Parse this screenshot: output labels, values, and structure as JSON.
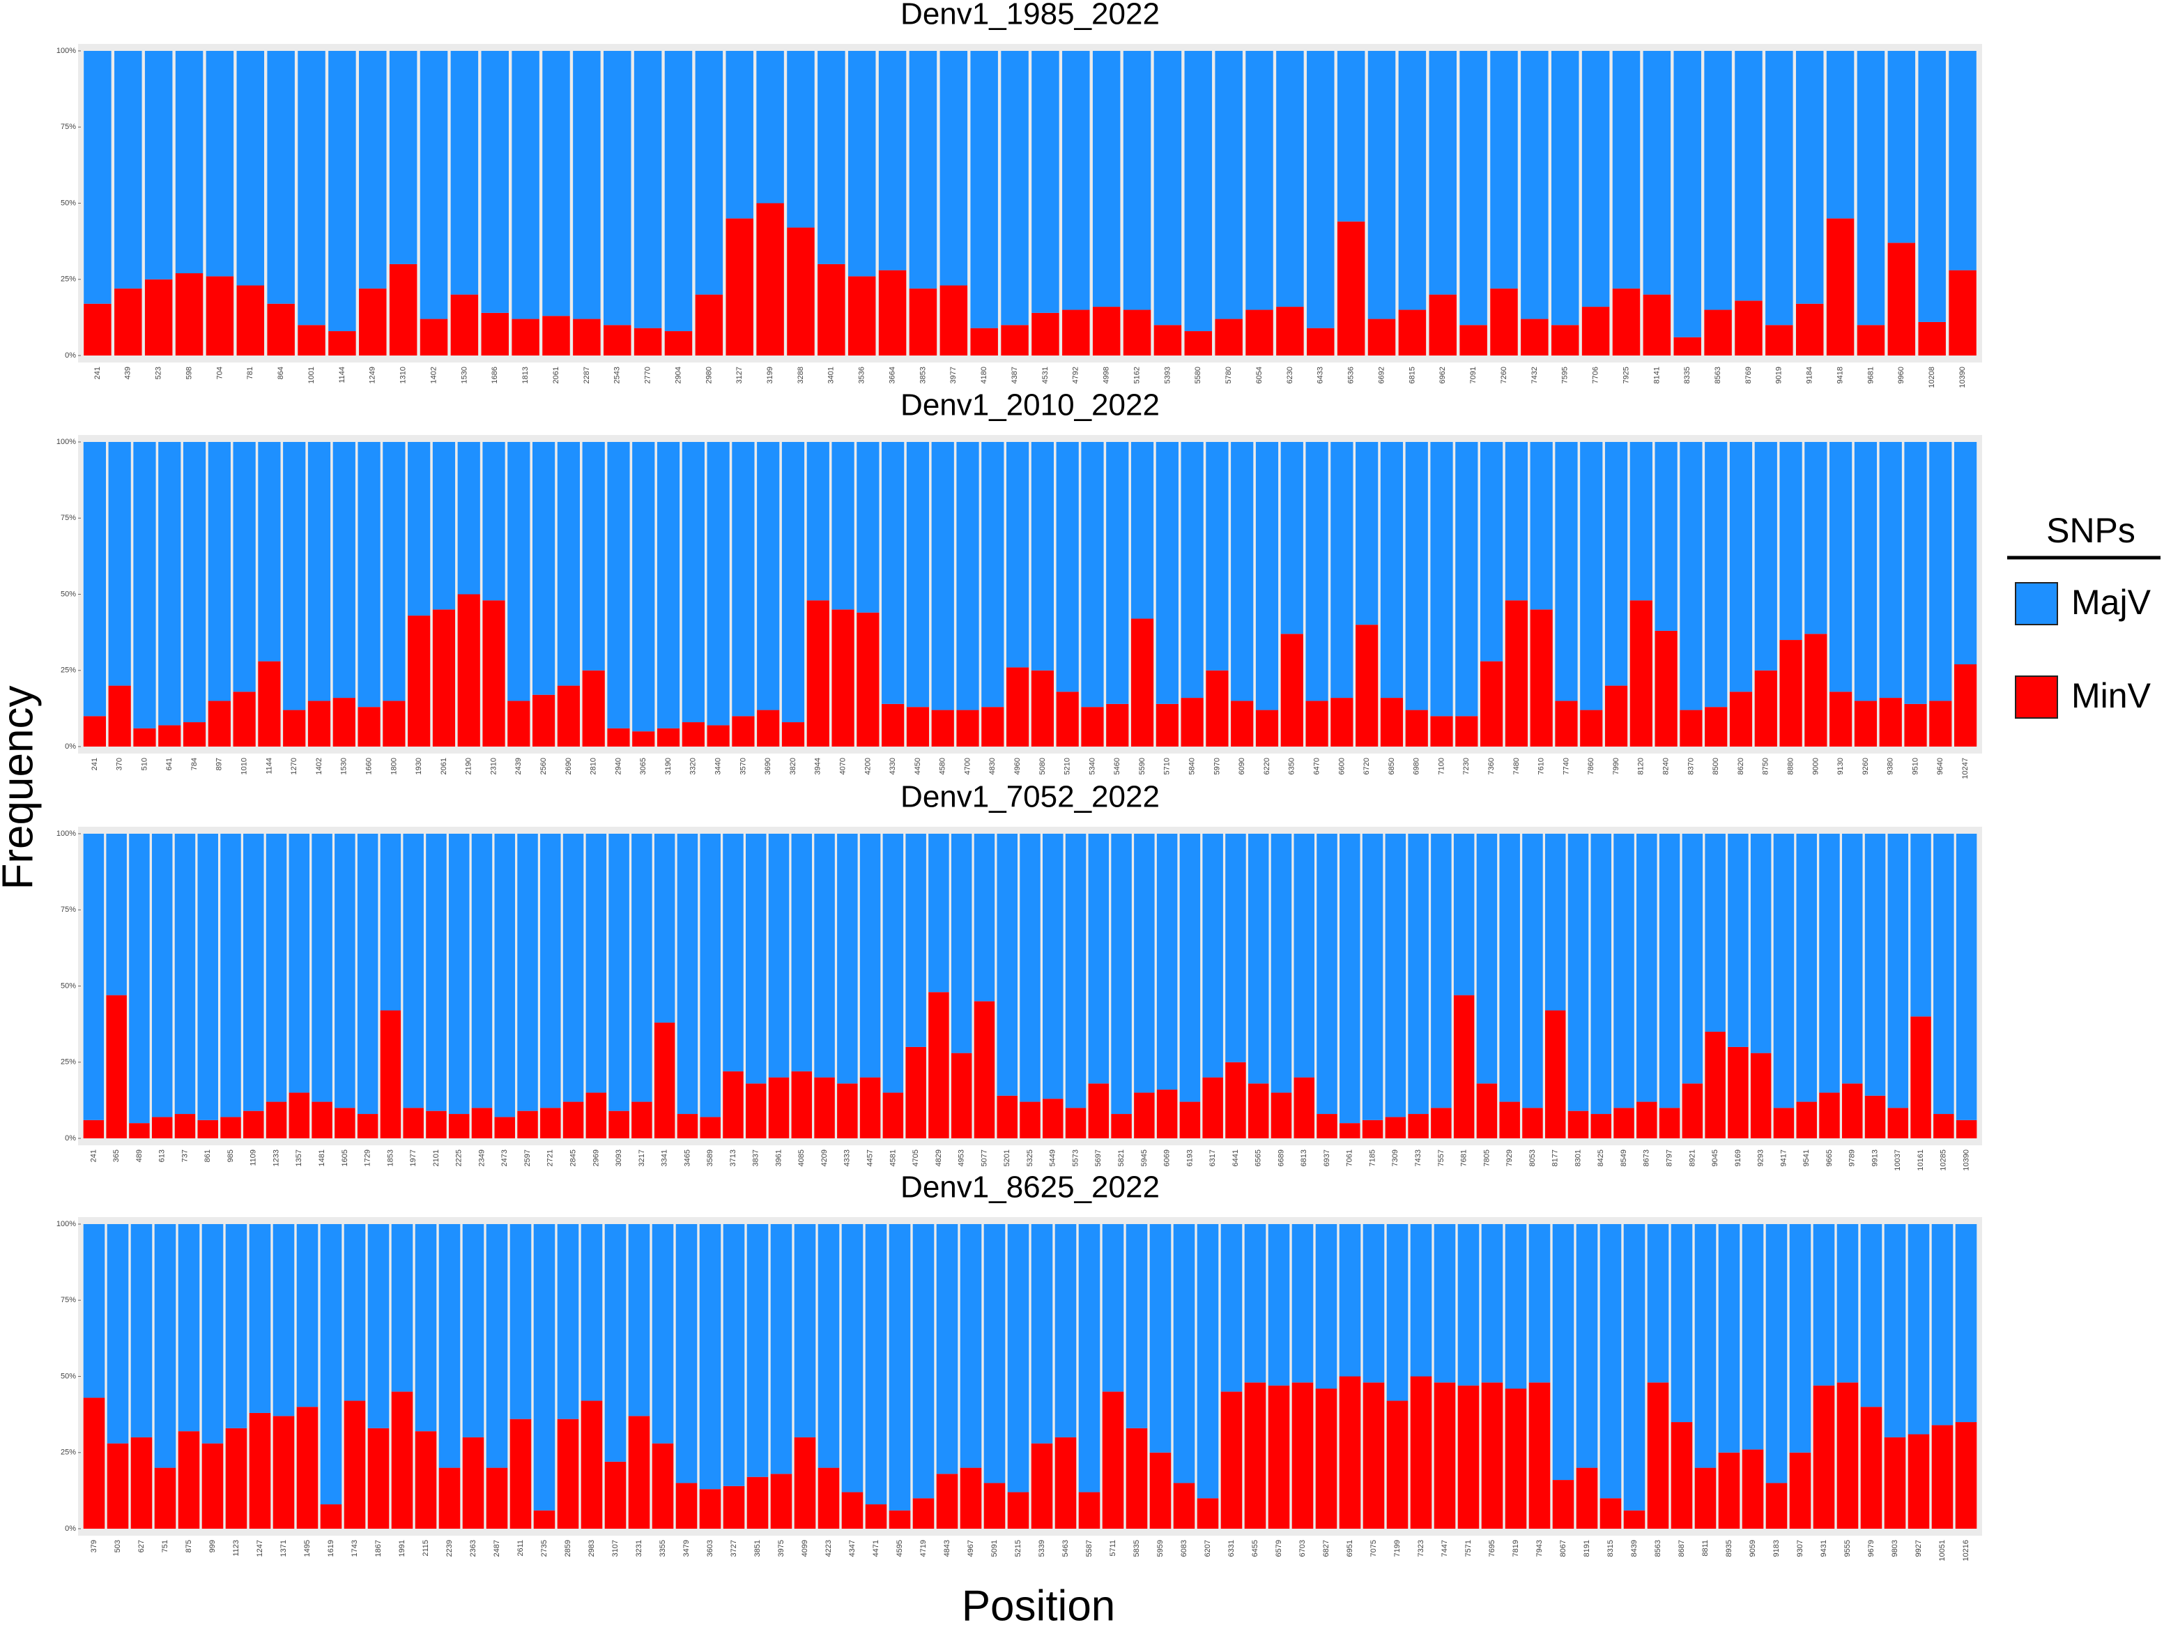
{
  "xlabel": "Position",
  "ylabel": "Frequency",
  "legend": {
    "title": "SNPs",
    "position": "right"
  },
  "chart_data": [
    {
      "type": "bar",
      "stacked": true,
      "title": "Denv1_1985_2022",
      "ylim": [
        0,
        100
      ],
      "yticks": [
        {
          "value": 0,
          "label": "0%"
        },
        {
          "value": 25,
          "label": "25%"
        },
        {
          "value": 50,
          "label": "50%"
        },
        {
          "value": 75,
          "label": "75%"
        },
        {
          "value": 100,
          "label": "100%"
        }
      ],
      "categories": [
        "241",
        "439",
        "523",
        "598",
        "704",
        "781",
        "864",
        "1001",
        "1144",
        "1249",
        "1310",
        "1402",
        "1530",
        "1686",
        "1813",
        "2061",
        "2287",
        "2543",
        "2770",
        "2904",
        "2980",
        "3127",
        "3199",
        "3288",
        "3401",
        "3536",
        "3664",
        "3853",
        "3977",
        "4180",
        "4387",
        "4531",
        "4792",
        "4998",
        "5162",
        "5393",
        "5580",
        "5780",
        "6054",
        "6230",
        "6433",
        "6536",
        "6692",
        "6815",
        "6962",
        "7091",
        "7260",
        "7432",
        "7595",
        "7706",
        "7925",
        "8141",
        "8335",
        "8563",
        "8769",
        "9019",
        "9184",
        "9418",
        "9681",
        "9960",
        "10208",
        "10390"
      ],
      "series": [
        {
          "name": "MajV",
          "color": "#1e90ff",
          "values": [
            83,
            78,
            75,
            73,
            74,
            77,
            83,
            90,
            92,
            78,
            70,
            88,
            80,
            86,
            88,
            87,
            88,
            90,
            91,
            92,
            80,
            55,
            50,
            58,
            70,
            74,
            72,
            78,
            77,
            91,
            90,
            86,
            85,
            84,
            85,
            90,
            92,
            88,
            85,
            84,
            91,
            56,
            88,
            85,
            80,
            90,
            78,
            88,
            90,
            84,
            78,
            80,
            94,
            85,
            82,
            90,
            83,
            55,
            90,
            63,
            89,
            72
          ]
        },
        {
          "name": "MinV",
          "color": "#ff0000",
          "values": [
            17,
            22,
            25,
            27,
            26,
            23,
            17,
            10,
            8,
            22,
            30,
            12,
            20,
            14,
            12,
            13,
            12,
            10,
            9,
            8,
            20,
            45,
            50,
            42,
            30,
            26,
            28,
            22,
            23,
            9,
            10,
            14,
            15,
            16,
            15,
            10,
            8,
            12,
            15,
            16,
            9,
            44,
            12,
            15,
            20,
            10,
            22,
            12,
            10,
            16,
            22,
            20,
            6,
            15,
            18,
            10,
            17,
            45,
            10,
            37,
            11,
            28
          ]
        }
      ]
    },
    {
      "type": "bar",
      "stacked": true,
      "title": "Denv1_2010_2022",
      "ylim": [
        0,
        100
      ],
      "yticks": [
        {
          "value": 0,
          "label": "0%"
        },
        {
          "value": 25,
          "label": "25%"
        },
        {
          "value": 50,
          "label": "50%"
        },
        {
          "value": 75,
          "label": "75%"
        },
        {
          "value": 100,
          "label": "100%"
        }
      ],
      "categories": [
        "241",
        "370",
        "510",
        "641",
        "784",
        "897",
        "1010",
        "1144",
        "1270",
        "1402",
        "1530",
        "1660",
        "1800",
        "1930",
        "2061",
        "2190",
        "2310",
        "2439",
        "2560",
        "2690",
        "2810",
        "2940",
        "3065",
        "3190",
        "3320",
        "3440",
        "3570",
        "3690",
        "3820",
        "3944",
        "4070",
        "4200",
        "4330",
        "4450",
        "4580",
        "4700",
        "4830",
        "4960",
        "5080",
        "5210",
        "5340",
        "5460",
        "5590",
        "5710",
        "5840",
        "5970",
        "6090",
        "6220",
        "6350",
        "6470",
        "6600",
        "6720",
        "6850",
        "6980",
        "7100",
        "7230",
        "7360",
        "7480",
        "7610",
        "7740",
        "7860",
        "7990",
        "8120",
        "8240",
        "8370",
        "8500",
        "8620",
        "8750",
        "8880",
        "9000",
        "9130",
        "9260",
        "9380",
        "9510",
        "9640",
        "10247"
      ],
      "series": [
        {
          "name": "MajV",
          "color": "#1e90ff",
          "values": [
            90,
            80,
            94,
            93,
            92,
            85,
            82,
            72,
            88,
            85,
            84,
            87,
            85,
            57,
            55,
            50,
            52,
            85,
            83,
            80,
            75,
            94,
            95,
            94,
            92,
            93,
            90,
            88,
            92,
            52,
            55,
            56,
            86,
            87,
            88,
            88,
            87,
            74,
            75,
            82,
            87,
            86,
            58,
            86,
            84,
            75,
            85,
            88,
            63,
            85,
            84,
            60,
            84,
            88,
            90,
            90,
            72,
            52,
            55,
            85,
            88,
            80,
            52,
            62,
            88,
            87,
            82,
            75,
            65,
            63,
            82,
            85,
            84,
            86,
            85,
            73
          ]
        },
        {
          "name": "MinV",
          "color": "#ff0000",
          "values": [
            10,
            20,
            6,
            7,
            8,
            15,
            18,
            28,
            12,
            15,
            16,
            13,
            15,
            43,
            45,
            50,
            48,
            15,
            17,
            20,
            25,
            6,
            5,
            6,
            8,
            7,
            10,
            12,
            8,
            48,
            45,
            44,
            14,
            13,
            12,
            12,
            13,
            26,
            25,
            18,
            13,
            14,
            42,
            14,
            16,
            25,
            15,
            12,
            37,
            15,
            16,
            40,
            16,
            12,
            10,
            10,
            28,
            48,
            45,
            15,
            12,
            20,
            48,
            38,
            12,
            13,
            18,
            25,
            35,
            37,
            18,
            15,
            16,
            14,
            15,
            27
          ]
        }
      ]
    },
    {
      "type": "bar",
      "stacked": true,
      "title": "Denv1_7052_2022",
      "ylim": [
        0,
        100
      ],
      "yticks": [
        {
          "value": 0,
          "label": "0%"
        },
        {
          "value": 25,
          "label": "25%"
        },
        {
          "value": 50,
          "label": "50%"
        },
        {
          "value": 75,
          "label": "75%"
        },
        {
          "value": 100,
          "label": "100%"
        }
      ],
      "categories": [
        "241",
        "365",
        "489",
        "613",
        "737",
        "861",
        "985",
        "1109",
        "1233",
        "1357",
        "1481",
        "1605",
        "1729",
        "1853",
        "1977",
        "2101",
        "2225",
        "2349",
        "2473",
        "2597",
        "2721",
        "2845",
        "2969",
        "3093",
        "3217",
        "3341",
        "3465",
        "3589",
        "3713",
        "3837",
        "3961",
        "4085",
        "4209",
        "4333",
        "4457",
        "4581",
        "4705",
        "4829",
        "4953",
        "5077",
        "5201",
        "5325",
        "5449",
        "5573",
        "5697",
        "5821",
        "5945",
        "6069",
        "6193",
        "6317",
        "6441",
        "6565",
        "6689",
        "6813",
        "6937",
        "7061",
        "7185",
        "7309",
        "7433",
        "7557",
        "7681",
        "7805",
        "7929",
        "8053",
        "8177",
        "8301",
        "8425",
        "8549",
        "8673",
        "8797",
        "8921",
        "9045",
        "9169",
        "9293",
        "9417",
        "9541",
        "9665",
        "9789",
        "9913",
        "10037",
        "10161",
        "10285",
        "10390"
      ],
      "series": [
        {
          "name": "MajV",
          "color": "#1e90ff",
          "values": [
            94,
            53,
            95,
            93,
            92,
            94,
            93,
            91,
            88,
            85,
            88,
            90,
            92,
            58,
            90,
            91,
            92,
            90,
            93,
            91,
            90,
            88,
            85,
            91,
            88,
            62,
            92,
            93,
            78,
            82,
            80,
            78,
            80,
            82,
            80,
            85,
            70,
            52,
            72,
            55,
            86,
            88,
            87,
            90,
            82,
            92,
            85,
            84,
            88,
            80,
            75,
            82,
            85,
            80,
            92,
            95,
            94,
            93,
            92,
            90,
            53,
            82,
            88,
            90,
            58,
            91,
            92,
            90,
            88,
            90,
            82,
            65,
            70,
            72,
            90,
            88,
            85,
            82,
            86,
            90,
            60,
            92,
            94
          ]
        },
        {
          "name": "MinV",
          "color": "#ff0000",
          "values": [
            6,
            47,
            5,
            7,
            8,
            6,
            7,
            9,
            12,
            15,
            12,
            10,
            8,
            42,
            10,
            9,
            8,
            10,
            7,
            9,
            10,
            12,
            15,
            9,
            12,
            38,
            8,
            7,
            22,
            18,
            20,
            22,
            20,
            18,
            20,
            15,
            30,
            48,
            28,
            45,
            14,
            12,
            13,
            10,
            18,
            8,
            15,
            16,
            12,
            20,
            25,
            18,
            15,
            20,
            8,
            5,
            6,
            7,
            8,
            10,
            47,
            18,
            12,
            10,
            42,
            9,
            8,
            10,
            12,
            10,
            18,
            35,
            30,
            28,
            10,
            12,
            15,
            18,
            14,
            10,
            40,
            8,
            6
          ]
        }
      ]
    },
    {
      "type": "bar",
      "stacked": true,
      "title": "Denv1_8625_2022",
      "ylim": [
        0,
        100
      ],
      "yticks": [
        {
          "value": 0,
          "label": "0%"
        },
        {
          "value": 25,
          "label": "25%"
        },
        {
          "value": 50,
          "label": "50%"
        },
        {
          "value": 75,
          "label": "75%"
        },
        {
          "value": 100,
          "label": "100%"
        }
      ],
      "categories": [
        "379",
        "503",
        "627",
        "751",
        "875",
        "999",
        "1123",
        "1247",
        "1371",
        "1495",
        "1619",
        "1743",
        "1867",
        "1991",
        "2115",
        "2239",
        "2363",
        "2487",
        "2611",
        "2735",
        "2859",
        "2983",
        "3107",
        "3231",
        "3355",
        "3479",
        "3603",
        "3727",
        "3851",
        "3975",
        "4099",
        "4223",
        "4347",
        "4471",
        "4595",
        "4719",
        "4843",
        "4967",
        "5091",
        "5215",
        "5339",
        "5463",
        "5587",
        "5711",
        "5835",
        "5959",
        "6083",
        "6207",
        "6331",
        "6455",
        "6579",
        "6703",
        "6827",
        "6951",
        "7075",
        "7199",
        "7323",
        "7447",
        "7571",
        "7695",
        "7819",
        "7943",
        "8067",
        "8191",
        "8315",
        "8439",
        "8563",
        "8687",
        "8811",
        "8935",
        "9059",
        "9183",
        "9307",
        "9431",
        "9555",
        "9679",
        "9803",
        "9927",
        "10051",
        "10216"
      ],
      "series": [
        {
          "name": "MajV",
          "color": "#1e90ff",
          "values": [
            57,
            72,
            70,
            80,
            68,
            72,
            67,
            62,
            63,
            60,
            92,
            58,
            67,
            55,
            68,
            80,
            70,
            80,
            64,
            94,
            64,
            58,
            78,
            63,
            72,
            85,
            87,
            86,
            83,
            82,
            70,
            80,
            88,
            92,
            94,
            90,
            82,
            80,
            85,
            88,
            72,
            70,
            88,
            55,
            67,
            75,
            85,
            90,
            55,
            52,
            53,
            52,
            54,
            50,
            52,
            58,
            50,
            52,
            53,
            52,
            54,
            52,
            84,
            80,
            90,
            94,
            52,
            65,
            80,
            75,
            74,
            85,
            75,
            53,
            52,
            60,
            70,
            69,
            66,
            65
          ]
        },
        {
          "name": "MinV",
          "color": "#ff0000",
          "values": [
            43,
            28,
            30,
            20,
            32,
            28,
            33,
            38,
            37,
            40,
            8,
            42,
            33,
            45,
            32,
            20,
            30,
            20,
            36,
            6,
            36,
            42,
            22,
            37,
            28,
            15,
            13,
            14,
            17,
            18,
            30,
            20,
            12,
            8,
            6,
            10,
            18,
            20,
            15,
            12,
            28,
            30,
            12,
            45,
            33,
            25,
            15,
            10,
            45,
            48,
            47,
            48,
            46,
            50,
            48,
            42,
            50,
            48,
            47,
            48,
            46,
            48,
            16,
            20,
            10,
            6,
            48,
            35,
            20,
            25,
            26,
            15,
            25,
            47,
            48,
            40,
            30,
            31,
            34,
            35
          ]
        }
      ]
    }
  ]
}
